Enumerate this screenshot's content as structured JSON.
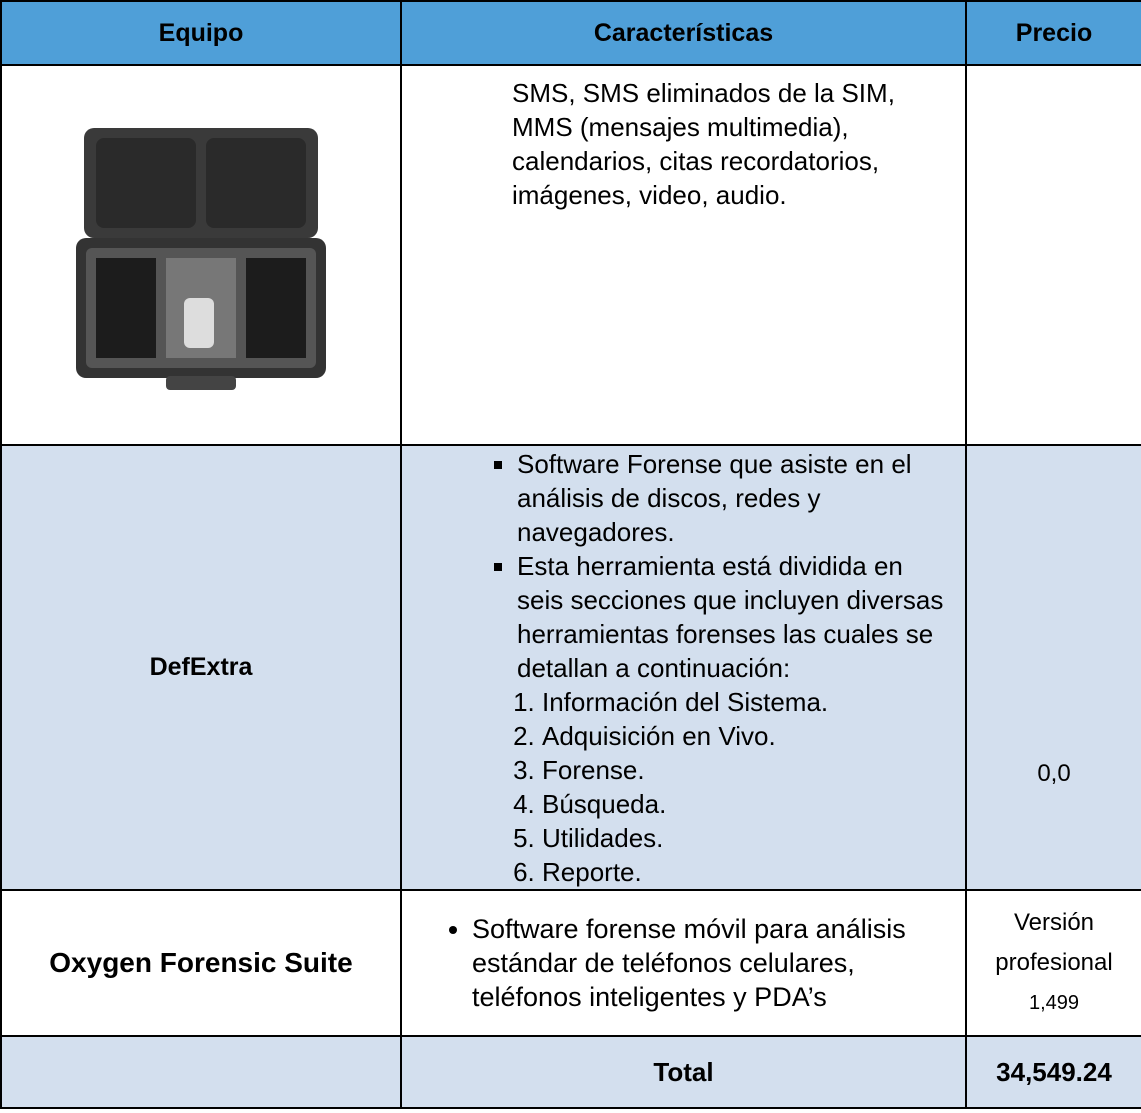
{
  "table": {
    "headers": [
      "Equipo",
      "Características",
      "Precio"
    ],
    "rows": [
      {
        "description": "SMS, SMS eliminados de la SIM, MMS (mensajes multimedia), calendarios, citas recordatorios, imágenes, video, audio."
      },
      {
        "name": "DefExtra",
        "bullets": [
          "Software Forense que asiste en el análisis de discos, redes y navegadores.",
          "Esta herramienta está dividida en seis secciones que incluyen diversas herramientas forenses las cuales  se detallan a continuación:"
        ],
        "numbered": [
          "Información del Sistema.",
          "Adquisición en Vivo.",
          "Forense.",
          "Búsqueda.",
          "Utilidades.",
          "Reporte."
        ],
        "price": "0,0"
      },
      {
        "name": "Oxygen Forensic Suite",
        "bullets": [
          "Software forense móvil para análisis estándar de teléfonos celulares, teléfonos inteligentes y PDA’s"
        ],
        "price_label": "Versión profesional",
        "price": "1,499"
      }
    ],
    "total": {
      "label": "Total",
      "value": "34,549.24"
    }
  }
}
